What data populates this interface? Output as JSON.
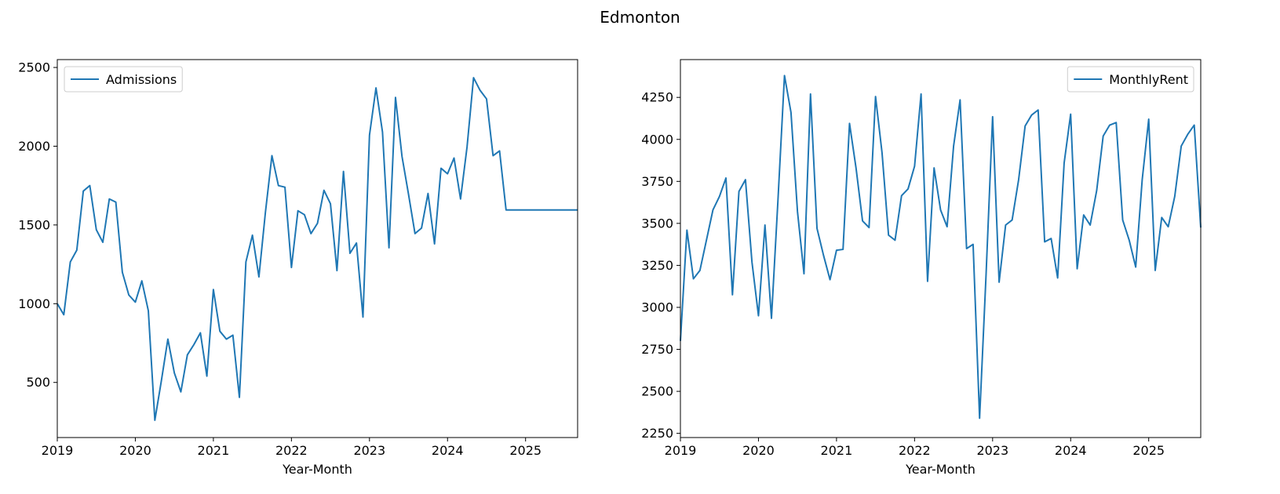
{
  "figure": {
    "title": "Edmonton"
  },
  "colors": {
    "series": "#1f77b4",
    "axes": "#000000",
    "legend_border": "#cccccc"
  },
  "chart_data": [
    {
      "type": "line",
      "title": "",
      "xlabel": "Year-Month",
      "ylabel": "",
      "legend_position": "upper-left",
      "grid": false,
      "xlim": [
        "2019-01",
        "2025-09"
      ],
      "ylim": [
        150,
        2550
      ],
      "x_ticks": [
        "2019",
        "2020",
        "2021",
        "2022",
        "2023",
        "2024",
        "2025"
      ],
      "y_ticks": [
        500,
        1000,
        1500,
        2000,
        2500
      ],
      "x": [
        "2019-01",
        "2019-02",
        "2019-03",
        "2019-04",
        "2019-05",
        "2019-06",
        "2019-07",
        "2019-08",
        "2019-09",
        "2019-10",
        "2019-11",
        "2019-12",
        "2020-01",
        "2020-02",
        "2020-03",
        "2020-04",
        "2020-05",
        "2020-06",
        "2020-07",
        "2020-08",
        "2020-09",
        "2020-10",
        "2020-11",
        "2020-12",
        "2021-01",
        "2021-02",
        "2021-03",
        "2021-04",
        "2021-05",
        "2021-06",
        "2021-07",
        "2021-08",
        "2021-09",
        "2021-10",
        "2021-11",
        "2021-12",
        "2022-01",
        "2022-02",
        "2022-03",
        "2022-04",
        "2022-05",
        "2022-06",
        "2022-07",
        "2022-08",
        "2022-09",
        "2022-10",
        "2022-11",
        "2022-12",
        "2023-01",
        "2023-02",
        "2023-03",
        "2023-04",
        "2023-05",
        "2023-06",
        "2023-07",
        "2023-08",
        "2023-09",
        "2023-10",
        "2023-11",
        "2023-12",
        "2024-01",
        "2024-02",
        "2024-03",
        "2024-04",
        "2024-05",
        "2024-06",
        "2024-07",
        "2024-08",
        "2024-09",
        "2024-10",
        "2024-11",
        "2024-12",
        "2025-01",
        "2025-02",
        "2025-03",
        "2025-04",
        "2025-05",
        "2025-06",
        "2025-07",
        "2025-08",
        "2025-09"
      ],
      "series": [
        {
          "name": "Admissions",
          "values": [
            1000,
            930,
            1265,
            1340,
            1715,
            1750,
            1470,
            1390,
            1665,
            1645,
            1200,
            1055,
            1010,
            1145,
            955,
            260,
            510,
            775,
            560,
            440,
            675,
            740,
            815,
            540,
            1090,
            825,
            775,
            800,
            405,
            1265,
            1435,
            1170,
            1580,
            1940,
            1750,
            1740,
            1230,
            1590,
            1565,
            1445,
            1510,
            1720,
            1635,
            1210,
            1840,
            1320,
            1385,
            915,
            2070,
            2370,
            2090,
            1355,
            2310,
            1935,
            1695,
            1445,
            1480,
            1700,
            1380,
            1860,
            1825,
            1925,
            1665,
            1995,
            2435,
            2355,
            2300,
            1940,
            1970,
            1595,
            1595,
            1595,
            1595,
            1595,
            1595,
            1595,
            1595,
            1595,
            1595,
            1595,
            1595
          ]
        }
      ]
    },
    {
      "type": "line",
      "title": "",
      "xlabel": "Year-Month",
      "ylabel": "",
      "legend_position": "upper-right",
      "grid": false,
      "xlim": [
        "2019-01",
        "2025-09"
      ],
      "ylim": [
        2225,
        4475
      ],
      "x_ticks": [
        "2019",
        "2020",
        "2021",
        "2022",
        "2023",
        "2024",
        "2025"
      ],
      "y_ticks": [
        2250,
        2500,
        2750,
        3000,
        3250,
        3500,
        3750,
        4000,
        4250
      ],
      "x": [
        "2019-01",
        "2019-02",
        "2019-03",
        "2019-04",
        "2019-05",
        "2019-06",
        "2019-07",
        "2019-08",
        "2019-09",
        "2019-10",
        "2019-11",
        "2019-12",
        "2020-01",
        "2020-02",
        "2020-03",
        "2020-04",
        "2020-05",
        "2020-06",
        "2020-07",
        "2020-08",
        "2020-09",
        "2020-10",
        "2020-11",
        "2020-12",
        "2021-01",
        "2021-02",
        "2021-03",
        "2021-04",
        "2021-05",
        "2021-06",
        "2021-07",
        "2021-08",
        "2021-09",
        "2021-10",
        "2021-11",
        "2021-12",
        "2022-01",
        "2022-02",
        "2022-03",
        "2022-04",
        "2022-05",
        "2022-06",
        "2022-07",
        "2022-08",
        "2022-09",
        "2022-10",
        "2022-11",
        "2022-12",
        "2023-01",
        "2023-02",
        "2023-03",
        "2023-04",
        "2023-05",
        "2023-06",
        "2023-07",
        "2023-08",
        "2023-09",
        "2023-10",
        "2023-11",
        "2023-12",
        "2024-01",
        "2024-02",
        "2024-03",
        "2024-04",
        "2024-05",
        "2024-06",
        "2024-07",
        "2024-08",
        "2024-09",
        "2024-10",
        "2024-11",
        "2024-12",
        "2025-01",
        "2025-02",
        "2025-03",
        "2025-04",
        "2025-05",
        "2025-06",
        "2025-07",
        "2025-08",
        "2025-09"
      ],
      "series": [
        {
          "name": "MonthlyRent",
          "values": [
            2800,
            3460,
            3170,
            3220,
            3400,
            3580,
            3660,
            3770,
            3075,
            3690,
            3760,
            3270,
            2950,
            3490,
            2935,
            3640,
            4380,
            4160,
            3570,
            3200,
            4270,
            3470,
            3310,
            3165,
            3340,
            3345,
            4095,
            3830,
            3515,
            3475,
            4255,
            3920,
            3430,
            3400,
            3665,
            3705,
            3840,
            4270,
            3155,
            3830,
            3580,
            3480,
            3960,
            4235,
            3350,
            3375,
            2340,
            3200,
            4135,
            3150,
            3490,
            3520,
            3760,
            4080,
            4145,
            4175,
            3390,
            3410,
            3175,
            3860,
            4150,
            3230,
            3550,
            3490,
            3695,
            4020,
            4085,
            4100,
            3520,
            3400,
            3240,
            3760,
            4120,
            3220,
            3535,
            3480,
            3660,
            3960,
            4030,
            4085,
            3475
          ]
        }
      ]
    }
  ]
}
